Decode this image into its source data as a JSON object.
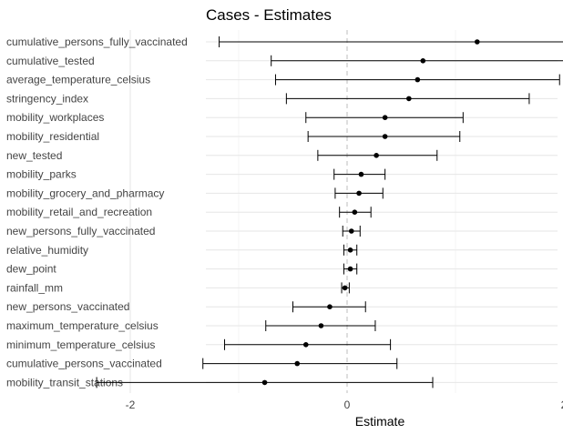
{
  "chart_data": {
    "type": "forest",
    "title": "Cases - Estimates",
    "xlabel": "Estimate",
    "ylabel": "",
    "xlim": [
      -2.3,
      3.6
    ],
    "xticks": [
      -2,
      0,
      2
    ],
    "grid": true,
    "reference_line": 0,
    "categories": [
      "cumulative_persons_fully_vaccinated",
      "cumulative_tested",
      "average_temperature_celsius",
      "stringency_index",
      "mobility_workplaces",
      "mobility_residential",
      "new_tested",
      "mobility_parks",
      "mobility_grocery_and_pharmacy",
      "mobility_retail_and_recreation",
      "new_persons_fully_vaccinated",
      "relative_humidity",
      "dew_point",
      "rainfall_mm",
      "new_persons_vaccinated",
      "maximum_temperature_celsius",
      "minimum_temperature_celsius",
      "cumulative_persons_vaccinated",
      "mobility_transit_stations"
    ],
    "estimates": [
      1.2,
      0.7,
      0.65,
      0.57,
      0.35,
      0.35,
      0.27,
      0.13,
      0.11,
      0.07,
      0.04,
      0.03,
      0.03,
      -0.02,
      -0.16,
      -0.24,
      -0.38,
      -0.46,
      -0.76
    ],
    "lower": [
      -1.18,
      -0.7,
      -0.66,
      -0.56,
      -0.38,
      -0.36,
      -0.27,
      -0.12,
      -0.11,
      -0.07,
      -0.04,
      -0.03,
      -0.03,
      -0.05,
      -0.5,
      -0.75,
      -1.13,
      -1.33,
      -2.31
    ],
    "upper": [
      3.58,
      2.1,
      1.96,
      1.68,
      1.07,
      1.04,
      0.83,
      0.35,
      0.33,
      0.22,
      0.12,
      0.09,
      0.09,
      0.02,
      0.17,
      0.26,
      0.4,
      0.46,
      0.79
    ]
  }
}
